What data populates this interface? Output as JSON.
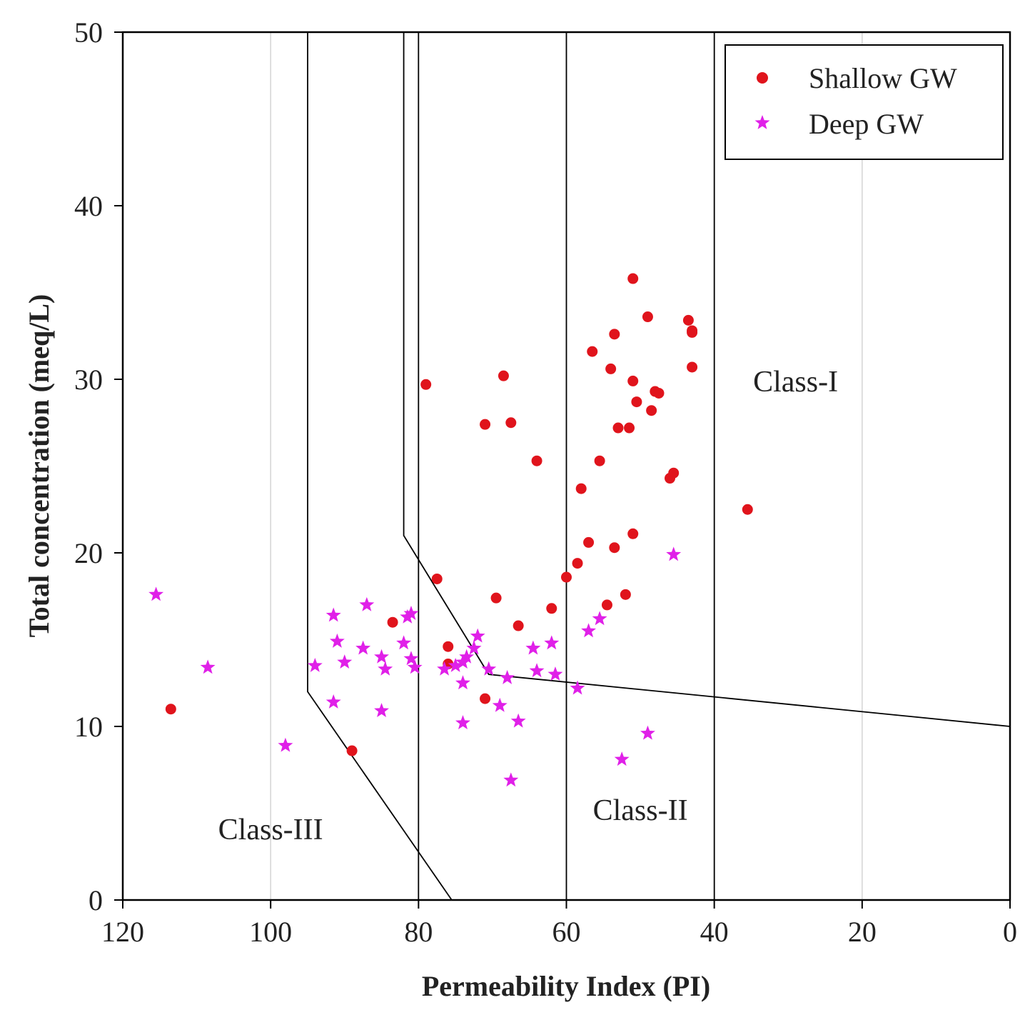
{
  "chart_data": {
    "type": "scatter",
    "title": "",
    "xlabel": "Permeability Index (PI)",
    "ylabel": "Total concentration (meq/L)",
    "xlim": [
      120,
      0
    ],
    "ylim": [
      0,
      50
    ],
    "x_ticks": [
      120,
      100,
      80,
      60,
      40,
      20,
      0
    ],
    "y_ticks": [
      0,
      10,
      20,
      30,
      40,
      50
    ],
    "grid": "vertical light grid at x ticks",
    "legend_position": "top-right",
    "class_labels": [
      {
        "text": "Class-I",
        "x": 29,
        "y": 29.3
      },
      {
        "text": "Class-II",
        "x": 50,
        "y": 4.6
      },
      {
        "text": "Class-III",
        "x": 100,
        "y": 3.5
      }
    ],
    "boundary_lines": [
      {
        "name": "class-iii-boundary",
        "points": [
          [
            95,
            50
          ],
          [
            95,
            12
          ],
          [
            75.5,
            0
          ]
        ]
      },
      {
        "name": "class-ii-boundary",
        "points": [
          [
            82,
            50
          ],
          [
            82,
            21
          ],
          [
            70.5,
            13
          ],
          [
            0,
            10
          ]
        ]
      },
      {
        "name": "vline-80",
        "points": [
          [
            80,
            50
          ],
          [
            80,
            0
          ]
        ]
      },
      {
        "name": "vline-60",
        "points": [
          [
            60,
            50
          ],
          [
            60,
            0
          ]
        ]
      },
      {
        "name": "vline-40",
        "points": [
          [
            40,
            50
          ],
          [
            40,
            0
          ]
        ]
      }
    ],
    "series": [
      {
        "name": "Shallow GW",
        "marker": "circle",
        "color": "#e0141c",
        "points": [
          [
            113.5,
            11
          ],
          [
            89,
            8.6
          ],
          [
            83.5,
            16
          ],
          [
            79,
            29.7
          ],
          [
            77.5,
            18.5
          ],
          [
            76,
            14.6
          ],
          [
            76,
            13.6
          ],
          [
            71,
            27.4
          ],
          [
            71,
            11.6
          ],
          [
            69.5,
            17.4
          ],
          [
            68.5,
            30.2
          ],
          [
            67.5,
            27.5
          ],
          [
            66.5,
            15.8
          ],
          [
            64,
            25.3
          ],
          [
            62,
            16.8
          ],
          [
            60,
            18.6
          ],
          [
            58.5,
            19.4
          ],
          [
            58,
            23.7
          ],
          [
            57,
            20.6
          ],
          [
            56.5,
            31.6
          ],
          [
            55.5,
            25.3
          ],
          [
            54.5,
            17
          ],
          [
            54,
            30.6
          ],
          [
            53.5,
            32.6
          ],
          [
            53.5,
            20.3
          ],
          [
            53,
            27.2
          ],
          [
            52,
            17.6
          ],
          [
            51.5,
            27.2
          ],
          [
            51,
            35.8
          ],
          [
            51,
            29.9
          ],
          [
            51,
            21.1
          ],
          [
            50.5,
            28.7
          ],
          [
            49,
            33.6
          ],
          [
            48.5,
            28.2
          ],
          [
            48,
            29.3
          ],
          [
            47.5,
            29.2
          ],
          [
            46,
            24.3
          ],
          [
            45.5,
            24.6
          ],
          [
            43.5,
            33.4
          ],
          [
            43,
            32.8
          ],
          [
            43,
            32.7
          ],
          [
            43,
            30.7
          ],
          [
            35.5,
            22.5
          ]
        ]
      },
      {
        "name": "Deep GW",
        "marker": "star",
        "color": "#e020e8",
        "points": [
          [
            115.5,
            17.6
          ],
          [
            108.5,
            13.4
          ],
          [
            98,
            8.9
          ],
          [
            94,
            13.5
          ],
          [
            91.5,
            16.4
          ],
          [
            91.5,
            11.4
          ],
          [
            91,
            14.9
          ],
          [
            90,
            13.7
          ],
          [
            87.5,
            14.5
          ],
          [
            87,
            17
          ],
          [
            85,
            14
          ],
          [
            85,
            10.9
          ],
          [
            84.5,
            13.3
          ],
          [
            82,
            14.8
          ],
          [
            81.5,
            16.3
          ],
          [
            81,
            16.5
          ],
          [
            81,
            13.9
          ],
          [
            80.5,
            13.4
          ],
          [
            76.5,
            13.3
          ],
          [
            75,
            13.5
          ],
          [
            74,
            13.7
          ],
          [
            74,
            12.5
          ],
          [
            74,
            10.2
          ],
          [
            73.5,
            14
          ],
          [
            72.5,
            14.5
          ],
          [
            72,
            15.2
          ],
          [
            70.5,
            13.3
          ],
          [
            69,
            11.2
          ],
          [
            68,
            12.8
          ],
          [
            67.5,
            6.9
          ],
          [
            66.5,
            10.3
          ],
          [
            64.5,
            14.5
          ],
          [
            64,
            13.2
          ],
          [
            62,
            14.8
          ],
          [
            61.5,
            13
          ],
          [
            58.5,
            12.2
          ],
          [
            57,
            15.5
          ],
          [
            55.5,
            16.2
          ],
          [
            52.5,
            8.1
          ],
          [
            49,
            9.6
          ],
          [
            45.5,
            19.9
          ]
        ]
      }
    ]
  }
}
